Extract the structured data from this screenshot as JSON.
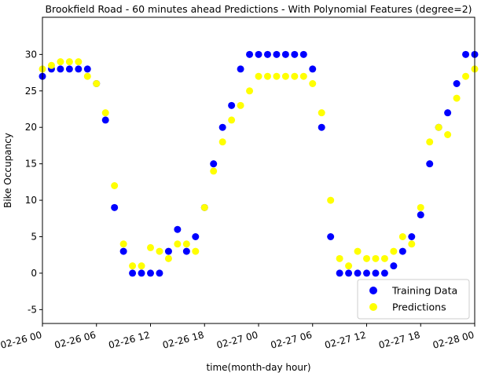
{
  "chart_data": {
    "type": "scatter",
    "title": "Brookfield Road - 60 minutes ahead Predictions - With Polynomial Features (degree=2)",
    "x_label": "time(month-day hour)",
    "y_label": "Bike Occupancy",
    "x": [
      "02-26 00",
      "02-26 01",
      "02-26 02",
      "02-26 03",
      "02-26 04",
      "02-26 05",
      "02-26 06",
      "02-26 07",
      "02-26 08",
      "02-26 09",
      "02-26 10",
      "02-26 11",
      "02-26 12",
      "02-26 13",
      "02-26 14",
      "02-26 15",
      "02-26 16",
      "02-26 17",
      "02-26 18",
      "02-26 19",
      "02-26 20",
      "02-26 21",
      "02-26 22",
      "02-26 23",
      "02-27 00",
      "02-27 01",
      "02-27 02",
      "02-27 03",
      "02-27 04",
      "02-27 05",
      "02-27 06",
      "02-27 07",
      "02-27 08",
      "02-27 09",
      "02-27 10",
      "02-27 11",
      "02-27 12",
      "02-27 13",
      "02-27 14",
      "02-27 15",
      "02-27 16",
      "02-27 17",
      "02-27 18",
      "02-27 19",
      "02-27 20",
      "02-27 21",
      "02-27 22",
      "02-27 23",
      "02-28 00"
    ],
    "series": [
      {
        "name": "Training Data",
        "color": "#0000ff",
        "values": [
          27,
          28,
          28,
          28,
          28,
          28,
          26,
          21,
          9,
          3,
          0,
          0,
          0,
          0,
          3,
          6,
          3,
          5,
          9,
          15,
          20,
          23,
          28,
          30,
          30,
          30,
          30,
          30,
          30,
          30,
          28,
          20,
          5,
          0,
          0,
          0,
          0,
          0,
          0,
          1,
          3,
          5,
          8,
          15,
          20,
          22,
          26,
          30,
          30
        ]
      },
      {
        "name": "Predictions",
        "color": "#ffff00",
        "values": [
          28,
          28.5,
          29,
          29,
          29,
          27,
          26,
          22,
          12,
          4,
          1,
          1,
          3.5,
          3,
          2,
          4,
          4,
          3,
          9,
          14,
          18,
          21,
          23,
          25,
          27,
          27,
          27,
          27,
          27,
          27,
          26,
          22,
          10,
          2,
          1,
          3,
          2,
          2,
          2,
          3,
          5,
          4,
          9,
          18,
          20,
          19,
          24,
          27,
          28
        ]
      }
    ],
    "xlim": [
      "02-26 00",
      "02-28 00"
    ],
    "xticks": [
      "02-26 00",
      "02-26 06",
      "02-26 12",
      "02-26 18",
      "02-27 00",
      "02-27 06",
      "02-27 12",
      "02-27 18",
      "02-28 00"
    ],
    "ylim": [
      -6.9,
      35.1
    ],
    "yticks": [
      -5,
      0,
      5,
      10,
      15,
      20,
      25,
      30
    ],
    "legend": "lower right"
  }
}
